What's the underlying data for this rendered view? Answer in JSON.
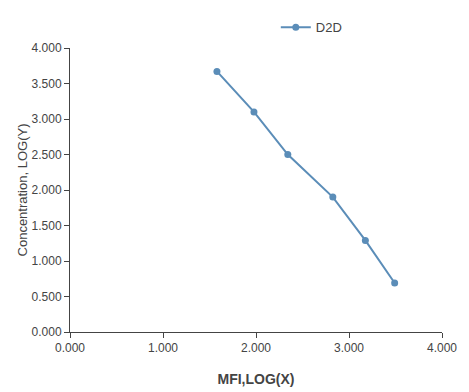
{
  "chart_data": {
    "type": "line",
    "x": [
      1.58,
      1.978,
      2.342,
      2.826,
      3.176,
      3.491
    ],
    "series": [
      {
        "name": "D2D",
        "color": "#5B8DB8",
        "marker": "circle",
        "values": [
          3.67,
          3.1,
          2.5,
          1.9,
          1.29,
          0.69
        ]
      }
    ],
    "xlabel": "MFI,LOG(X)",
    "ylabel": "Concentration, LOG(Y)",
    "xlim": [
      0.0,
      4.0
    ],
    "ylim": [
      0.0,
      4.0
    ],
    "xticks": [
      {
        "value": 0.0,
        "label": "0.000"
      },
      {
        "value": 1.0,
        "label": "1.000"
      },
      {
        "value": 2.0,
        "label": "2.000"
      },
      {
        "value": 3.0,
        "label": "3.000"
      },
      {
        "value": 4.0,
        "label": "4.000"
      }
    ],
    "yticks": [
      {
        "value": 0.0,
        "label": "0.000"
      },
      {
        "value": 0.5,
        "label": "0.500"
      },
      {
        "value": 1.0,
        "label": "1.000"
      },
      {
        "value": 1.5,
        "label": "1.500"
      },
      {
        "value": 2.0,
        "label": "2.000"
      },
      {
        "value": 2.5,
        "label": "2.500"
      },
      {
        "value": 3.0,
        "label": "3.000"
      },
      {
        "value": 3.5,
        "label": "3.500"
      },
      {
        "value": 4.0,
        "label": "4.000"
      }
    ],
    "grid": false,
    "legend": "top"
  }
}
